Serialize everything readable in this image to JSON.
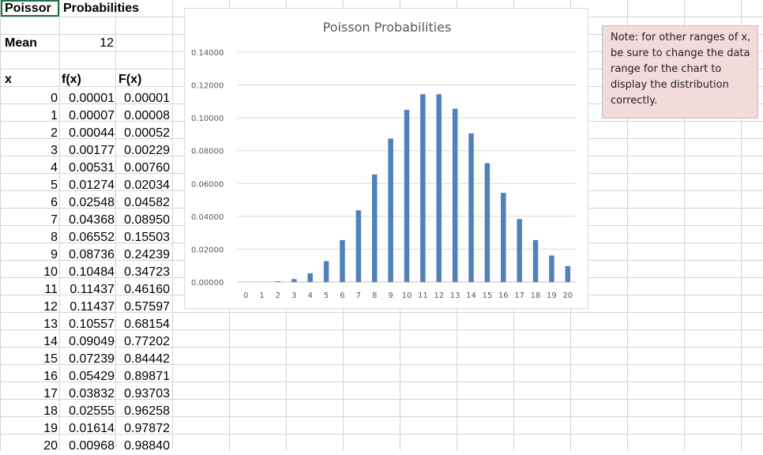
{
  "sheet": {
    "title_cell_a1": "Poissor",
    "title_cell_b1": "Probabilities",
    "mean_label": "Mean",
    "mean_value": "12",
    "header_x": "x",
    "header_fx": "f(x)",
    "header_Fx": "F(x)",
    "rows": [
      {
        "x": "0",
        "fx": "0.00001",
        "Fx": "0.00001"
      },
      {
        "x": "1",
        "fx": "0.00007",
        "Fx": "0.00008"
      },
      {
        "x": "2",
        "fx": "0.00044",
        "Fx": "0.00052"
      },
      {
        "x": "3",
        "fx": "0.00177",
        "Fx": "0.00229"
      },
      {
        "x": "4",
        "fx": "0.00531",
        "Fx": "0.00760"
      },
      {
        "x": "5",
        "fx": "0.01274",
        "Fx": "0.02034"
      },
      {
        "x": "6",
        "fx": "0.02548",
        "Fx": "0.04582"
      },
      {
        "x": "7",
        "fx": "0.04368",
        "Fx": "0.08950"
      },
      {
        "x": "8",
        "fx": "0.06552",
        "Fx": "0.15503"
      },
      {
        "x": "9",
        "fx": "0.08736",
        "Fx": "0.24239"
      },
      {
        "x": "10",
        "fx": "0.10484",
        "Fx": "0.34723"
      },
      {
        "x": "11",
        "fx": "0.11437",
        "Fx": "0.46160"
      },
      {
        "x": "12",
        "fx": "0.11437",
        "Fx": "0.57597"
      },
      {
        "x": "13",
        "fx": "0.10557",
        "Fx": "0.68154"
      },
      {
        "x": "14",
        "fx": "0.09049",
        "Fx": "0.77202"
      },
      {
        "x": "15",
        "fx": "0.07239",
        "Fx": "0.84442"
      },
      {
        "x": "16",
        "fx": "0.05429",
        "Fx": "0.89871"
      },
      {
        "x": "17",
        "fx": "0.03832",
        "Fx": "0.93703"
      },
      {
        "x": "18",
        "fx": "0.02555",
        "Fx": "0.96258"
      },
      {
        "x": "19",
        "fx": "0.01614",
        "Fx": "0.97872"
      },
      {
        "x": "20",
        "fx": "0.00968",
        "Fx": "0.98840"
      }
    ]
  },
  "note": {
    "text": "Note: for other ranges of x, be sure to change the data range for the chart to display the distribution correctly.",
    "background": "#f2dcdb"
  },
  "chart_data": {
    "type": "bar",
    "title": "Poisson Probabilities",
    "xlabel": "",
    "ylabel": "",
    "categories": [
      "0",
      "1",
      "2",
      "3",
      "4",
      "5",
      "6",
      "7",
      "8",
      "9",
      "10",
      "11",
      "12",
      "13",
      "14",
      "15",
      "16",
      "17",
      "18",
      "19",
      "20"
    ],
    "values": [
      1e-05,
      7e-05,
      0.00044,
      0.00177,
      0.00531,
      0.01274,
      0.02548,
      0.04368,
      0.06552,
      0.08736,
      0.10484,
      0.11437,
      0.11437,
      0.10557,
      0.09049,
      0.07239,
      0.05429,
      0.03832,
      0.02555,
      0.01614,
      0.00968
    ],
    "y_ticks": [
      "0.00000",
      "0.02000",
      "0.04000",
      "0.06000",
      "0.08000",
      "0.10000",
      "0.12000",
      "0.14000"
    ],
    "ylim": [
      0,
      0.14
    ],
    "bar_color": "#4f81bd",
    "grid": true,
    "legend": "none"
  }
}
